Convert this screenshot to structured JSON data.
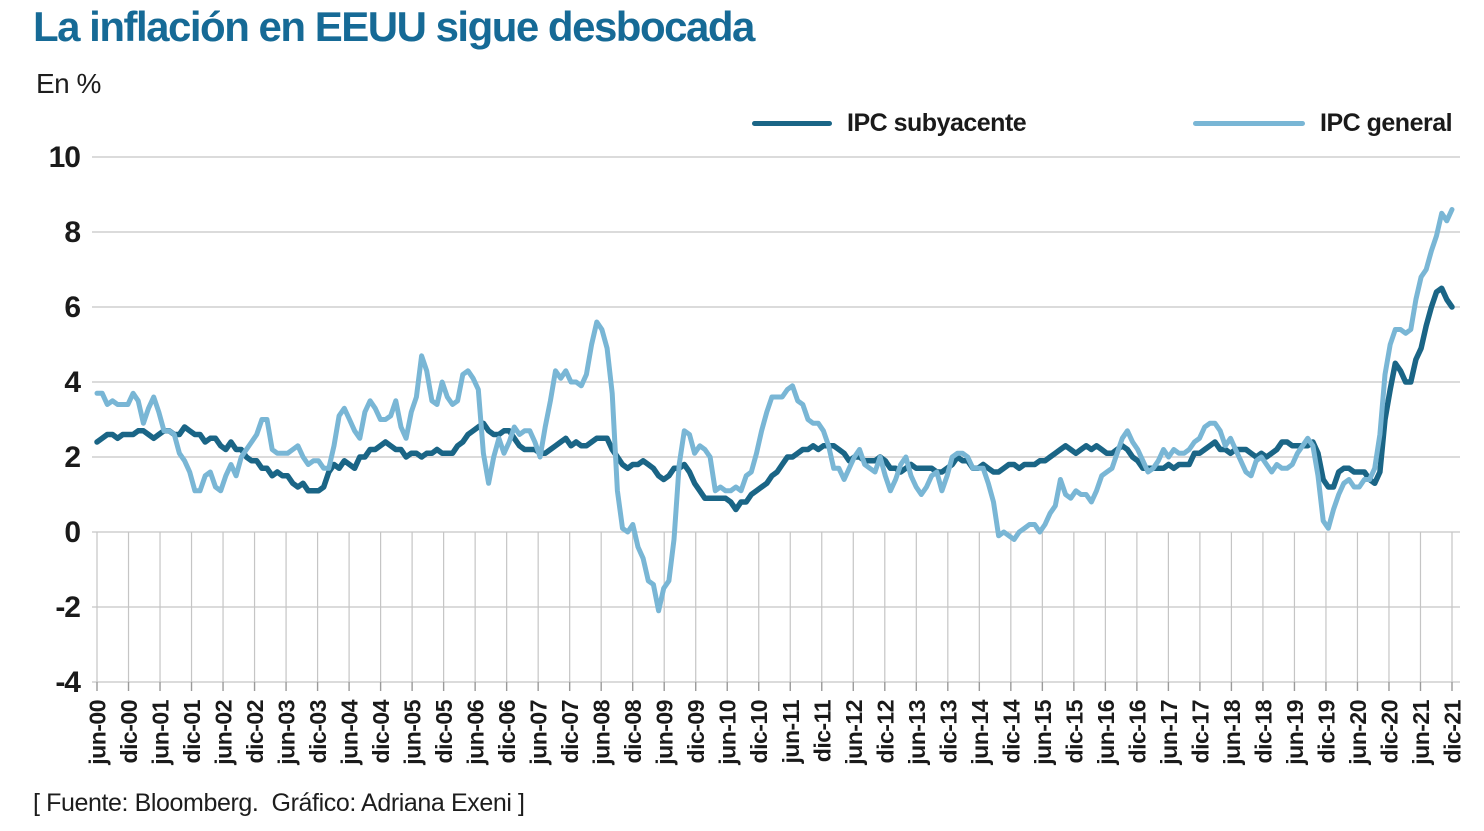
{
  "colors": {
    "title": "#166a96",
    "core_line": "#1a6586",
    "headline_line": "#79b6d5",
    "grid": "#c5c5c5",
    "axis_text": "#1a1a1a"
  },
  "footer": {
    "text": "[ Fuente: Bloomberg.  Gráfico: Adriana Exeni ]"
  },
  "chart_data": {
    "type": "line",
    "title": "La inflación en EEUU sigue desbocada",
    "subtitle": "En %",
    "ylabel": "",
    "xlabel": "",
    "ylim": [
      -4,
      10
    ],
    "y_ticks": [
      10,
      8,
      6,
      4,
      2,
      0,
      -2,
      -4
    ],
    "grid": {
      "horizontal": "full-width",
      "vertical": "below-zero-only"
    },
    "legend_position": "top-right",
    "frequency": "monthly",
    "x_tick_labels": [
      "jun-00",
      "dic-00",
      "jun-01",
      "dic-01",
      "jun-02",
      "dic-02",
      "jun-03",
      "dic-03",
      "jun-04",
      "dic-04",
      "jun-05",
      "dic-05",
      "jun-06",
      "dic-06",
      "jun-07",
      "dic-07",
      "jun-08",
      "dic-08",
      "jun-09",
      "dic-09",
      "jun-10",
      "dic-10",
      "jun-11",
      "dic-11",
      "jun-12",
      "dic-12",
      "jun-13",
      "dic-13",
      "jun-14",
      "dic-14",
      "jun-15",
      "dic-15",
      "jun-16",
      "dic-16",
      "jun-17",
      "dic-17",
      "jun-18",
      "dic-18",
      "jun-19",
      "dic-19",
      "jun-20",
      "dic-20",
      "jun-21",
      "dic-21"
    ],
    "series": [
      {
        "name": "IPC subyacente",
        "color": "#1a6586",
        "values": [
          2.4,
          2.5,
          2.6,
          2.6,
          2.5,
          2.6,
          2.6,
          2.6,
          2.7,
          2.7,
          2.6,
          2.5,
          2.6,
          2.7,
          2.7,
          2.6,
          2.6,
          2.8,
          2.7,
          2.6,
          2.6,
          2.4,
          2.5,
          2.5,
          2.3,
          2.2,
          2.4,
          2.2,
          2.2,
          2.0,
          1.9,
          1.9,
          1.7,
          1.7,
          1.5,
          1.6,
          1.5,
          1.5,
          1.3,
          1.2,
          1.3,
          1.1,
          1.1,
          1.1,
          1.2,
          1.6,
          1.8,
          1.7,
          1.9,
          1.8,
          1.7,
          2.0,
          2.0,
          2.2,
          2.2,
          2.3,
          2.4,
          2.3,
          2.2,
          2.2,
          2.0,
          2.1,
          2.1,
          2.0,
          2.1,
          2.1,
          2.2,
          2.1,
          2.1,
          2.1,
          2.3,
          2.4,
          2.6,
          2.7,
          2.8,
          2.9,
          2.7,
          2.6,
          2.6,
          2.7,
          2.7,
          2.5,
          2.3,
          2.2,
          2.2,
          2.2,
          2.1,
          2.1,
          2.2,
          2.3,
          2.4,
          2.5,
          2.3,
          2.4,
          2.3,
          2.3,
          2.4,
          2.5,
          2.5,
          2.5,
          2.2,
          2.0,
          1.8,
          1.7,
          1.8,
          1.8,
          1.9,
          1.8,
          1.7,
          1.5,
          1.4,
          1.5,
          1.7,
          1.7,
          1.8,
          1.6,
          1.3,
          1.1,
          0.9,
          0.9,
          0.9,
          0.9,
          0.9,
          0.8,
          0.6,
          0.8,
          0.8,
          1.0,
          1.1,
          1.2,
          1.3,
          1.5,
          1.6,
          1.8,
          2.0,
          2.0,
          2.1,
          2.2,
          2.2,
          2.3,
          2.2,
          2.3,
          2.3,
          2.3,
          2.2,
          2.1,
          1.9,
          2.0,
          2.0,
          1.9,
          1.9,
          1.9,
          2.0,
          1.9,
          1.7,
          1.7,
          1.6,
          1.7,
          1.8,
          1.7,
          1.7,
          1.7,
          1.7,
          1.6,
          1.6,
          1.7,
          1.8,
          2.0,
          1.9,
          1.9,
          1.7,
          1.7,
          1.8,
          1.7,
          1.6,
          1.6,
          1.7,
          1.8,
          1.8,
          1.7,
          1.8,
          1.8,
          1.8,
          1.9,
          1.9,
          2.0,
          2.1,
          2.2,
          2.3,
          2.2,
          2.1,
          2.2,
          2.3,
          2.2,
          2.3,
          2.2,
          2.1,
          2.1,
          2.2,
          2.3,
          2.2,
          2.0,
          1.9,
          1.7,
          1.7,
          1.7,
          1.7,
          1.7,
          1.8,
          1.7,
          1.8,
          1.8,
          1.8,
          2.1,
          2.1,
          2.2,
          2.3,
          2.4,
          2.2,
          2.2,
          2.1,
          2.2,
          2.2,
          2.2,
          2.1,
          2.0,
          2.1,
          2.0,
          2.1,
          2.2,
          2.4,
          2.4,
          2.3,
          2.3,
          2.3,
          2.3,
          2.4,
          2.1,
          1.4,
          1.2,
          1.2,
          1.6,
          1.7,
          1.7,
          1.6,
          1.6,
          1.6,
          1.4,
          1.3,
          1.6,
          3.0,
          3.8,
          4.5,
          4.3,
          4.0,
          4.0,
          4.6,
          4.9,
          5.5,
          6.0,
          6.4,
          6.5,
          6.2,
          6.0
        ]
      },
      {
        "name": "IPC general",
        "color": "#79b6d5",
        "values": [
          3.7,
          3.7,
          3.4,
          3.5,
          3.4,
          3.4,
          3.4,
          3.7,
          3.5,
          2.9,
          3.3,
          3.6,
          3.2,
          2.7,
          2.7,
          2.6,
          2.1,
          1.9,
          1.6,
          1.1,
          1.1,
          1.5,
          1.6,
          1.2,
          1.1,
          1.5,
          1.8,
          1.5,
          2.0,
          2.2,
          2.4,
          2.6,
          3.0,
          3.0,
          2.2,
          2.1,
          2.1,
          2.1,
          2.2,
          2.3,
          2.0,
          1.8,
          1.9,
          1.9,
          1.7,
          1.7,
          2.3,
          3.1,
          3.3,
          3.0,
          2.7,
          2.5,
          3.2,
          3.5,
          3.3,
          3.0,
          3.0,
          3.1,
          3.5,
          2.8,
          2.5,
          3.2,
          3.6,
          4.7,
          4.3,
          3.5,
          3.4,
          4.0,
          3.6,
          3.4,
          3.5,
          4.2,
          4.3,
          4.1,
          3.8,
          2.1,
          1.3,
          2.0,
          2.5,
          2.1,
          2.4,
          2.8,
          2.6,
          2.7,
          2.7,
          2.4,
          2.0,
          2.8,
          3.5,
          4.3,
          4.1,
          4.3,
          4.0,
          4.0,
          3.9,
          4.2,
          5.0,
          5.6,
          5.4,
          4.9,
          3.7,
          1.1,
          0.1,
          0.0,
          0.2,
          -0.4,
          -0.7,
          -1.3,
          -1.4,
          -2.1,
          -1.5,
          -1.3,
          -0.2,
          1.8,
          2.7,
          2.6,
          2.1,
          2.3,
          2.2,
          2.0,
          1.1,
          1.2,
          1.1,
          1.1,
          1.2,
          1.1,
          1.5,
          1.6,
          2.1,
          2.7,
          3.2,
          3.6,
          3.6,
          3.6,
          3.8,
          3.9,
          3.5,
          3.4,
          3.0,
          2.9,
          2.9,
          2.7,
          2.3,
          1.7,
          1.7,
          1.4,
          1.7,
          2.0,
          2.2,
          1.8,
          1.7,
          1.6,
          2.0,
          1.5,
          1.1,
          1.4,
          1.8,
          2.0,
          1.5,
          1.2,
          1.0,
          1.2,
          1.5,
          1.6,
          1.1,
          1.5,
          2.0,
          2.1,
          2.1,
          2.0,
          1.7,
          1.7,
          1.7,
          1.3,
          0.8,
          -0.1,
          0.0,
          -0.1,
          -0.2,
          0.0,
          0.1,
          0.2,
          0.2,
          0.0,
          0.2,
          0.5,
          0.7,
          1.4,
          1.0,
          0.9,
          1.1,
          1.0,
          1.0,
          0.8,
          1.1,
          1.5,
          1.6,
          1.7,
          2.1,
          2.5,
          2.7,
          2.4,
          2.2,
          1.9,
          1.6,
          1.7,
          1.9,
          2.2,
          2.0,
          2.2,
          2.1,
          2.1,
          2.2,
          2.4,
          2.5,
          2.8,
          2.9,
          2.9,
          2.7,
          2.3,
          2.5,
          2.2,
          1.9,
          1.6,
          1.5,
          1.9,
          2.0,
          1.8,
          1.6,
          1.8,
          1.7,
          1.7,
          1.8,
          2.1,
          2.3,
          2.5,
          2.3,
          1.5,
          0.3,
          0.1,
          0.6,
          1.0,
          1.3,
          1.4,
          1.2,
          1.2,
          1.4,
          1.4,
          1.7,
          2.6,
          4.2,
          5.0,
          5.4,
          5.4,
          5.3,
          5.4,
          6.2,
          6.8,
          7.0,
          7.5,
          7.9,
          8.5,
          8.3,
          8.6
        ]
      }
    ]
  }
}
